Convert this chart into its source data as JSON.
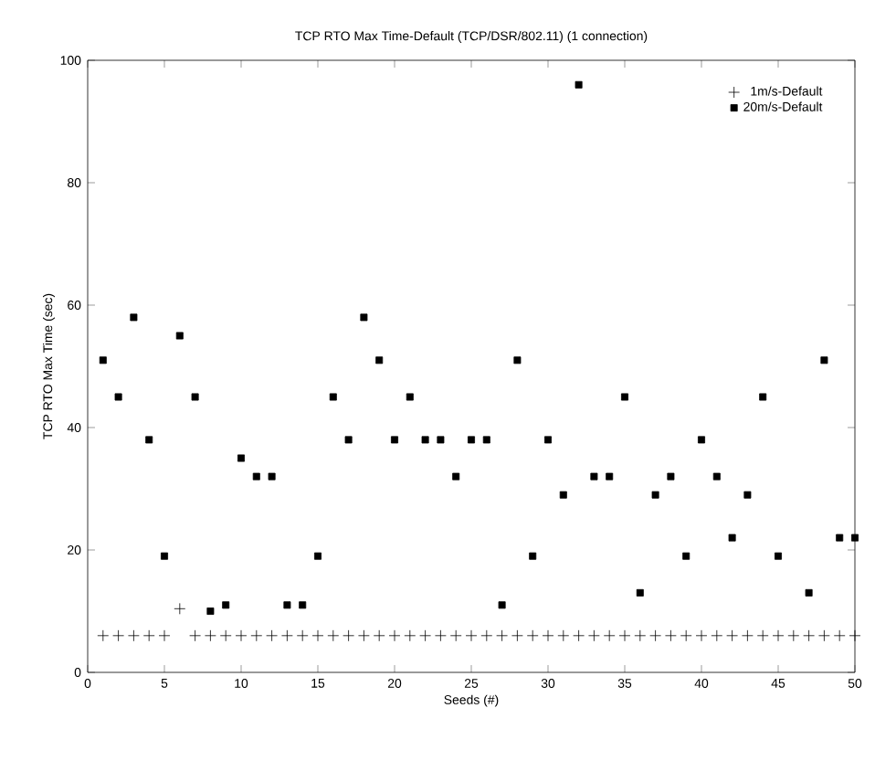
{
  "chart_data": {
    "type": "scatter",
    "title": "TCP RTO Max Time-Default (TCP/DSR/802.11) (1 connection)",
    "xlabel": "Seeds (#)",
    "ylabel": "TCP RTO Max Time (sec)",
    "xlim": [
      0,
      50
    ],
    "ylim": [
      0,
      100
    ],
    "xticks": [
      0,
      5,
      10,
      15,
      20,
      25,
      30,
      35,
      40,
      45,
      50
    ],
    "yticks": [
      0,
      20,
      40,
      60,
      80,
      100
    ],
    "grid": false,
    "legend": "top right",
    "x": [
      1,
      2,
      3,
      4,
      5,
      6,
      7,
      8,
      9,
      10,
      11,
      12,
      13,
      14,
      15,
      16,
      17,
      18,
      19,
      20,
      21,
      22,
      23,
      24,
      25,
      26,
      27,
      28,
      29,
      30,
      31,
      32,
      33,
      34,
      35,
      36,
      37,
      38,
      39,
      40,
      41,
      42,
      43,
      44,
      45,
      46,
      47,
      48,
      49,
      50
    ],
    "series": [
      {
        "name": "1m/s-Default",
        "color": "#000000",
        "marker": "cross",
        "values": [
          6,
          6,
          6,
          6,
          6,
          10.4,
          6,
          6,
          6,
          6,
          6,
          6,
          6,
          6,
          6,
          6,
          6,
          6,
          6,
          6,
          6,
          6,
          6,
          6,
          6,
          6,
          6,
          6,
          6,
          6,
          6,
          6,
          6,
          6,
          6,
          6,
          6,
          6,
          6,
          6,
          6,
          6,
          6,
          6,
          6,
          6,
          6,
          6,
          6,
          6
        ]
      },
      {
        "name": "20m/s-Default",
        "color": "#000000",
        "marker": "square",
        "values": [
          51,
          45,
          58,
          38,
          19,
          55,
          45,
          10,
          11,
          35,
          32,
          32,
          11,
          11,
          19,
          45,
          38,
          58,
          51,
          38,
          45,
          38,
          38,
          32,
          38,
          38,
          11,
          51,
          19,
          38,
          29,
          96,
          32,
          32,
          45,
          13,
          29,
          32,
          19,
          38,
          32,
          22,
          29,
          45,
          19,
          null,
          13,
          51,
          22,
          22
        ]
      }
    ]
  }
}
